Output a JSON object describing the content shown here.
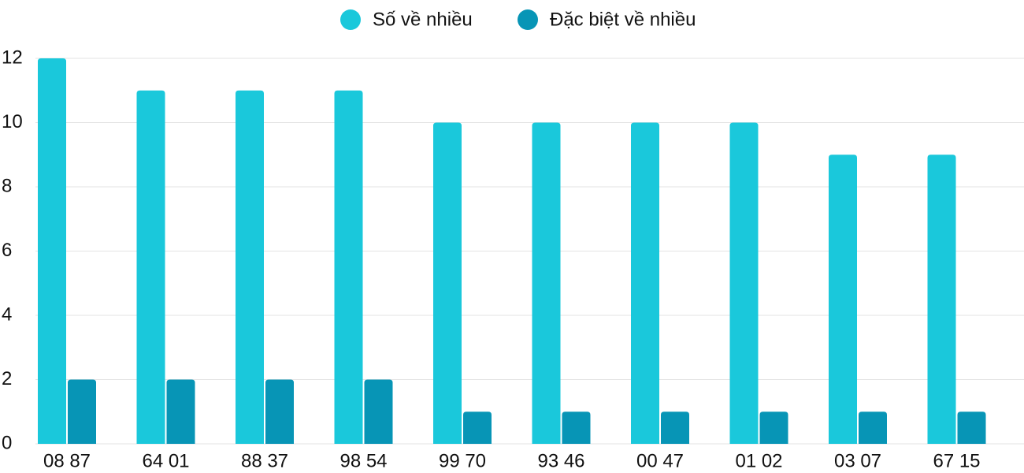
{
  "chart_data": {
    "type": "bar",
    "categories": [
      "08 87",
      "64 01",
      "88 37",
      "98 54",
      "99 70",
      "93 46",
      "00 47",
      "01 02",
      "03 07",
      "67 15"
    ],
    "series": [
      {
        "name": "Số về nhiều",
        "color": "#1ac8db",
        "values": [
          12,
          11,
          11,
          11,
          10,
          10,
          10,
          10,
          9,
          9
        ]
      },
      {
        "name": "Đặc biệt về nhiều",
        "color": "#0795b6",
        "values": [
          2,
          2,
          2,
          2,
          1,
          1,
          1,
          1,
          1,
          1
        ]
      }
    ],
    "ylim": [
      0,
      12
    ],
    "yticks": [
      0,
      2,
      4,
      6,
      8,
      10,
      12
    ],
    "grid": true,
    "legend": "top"
  }
}
